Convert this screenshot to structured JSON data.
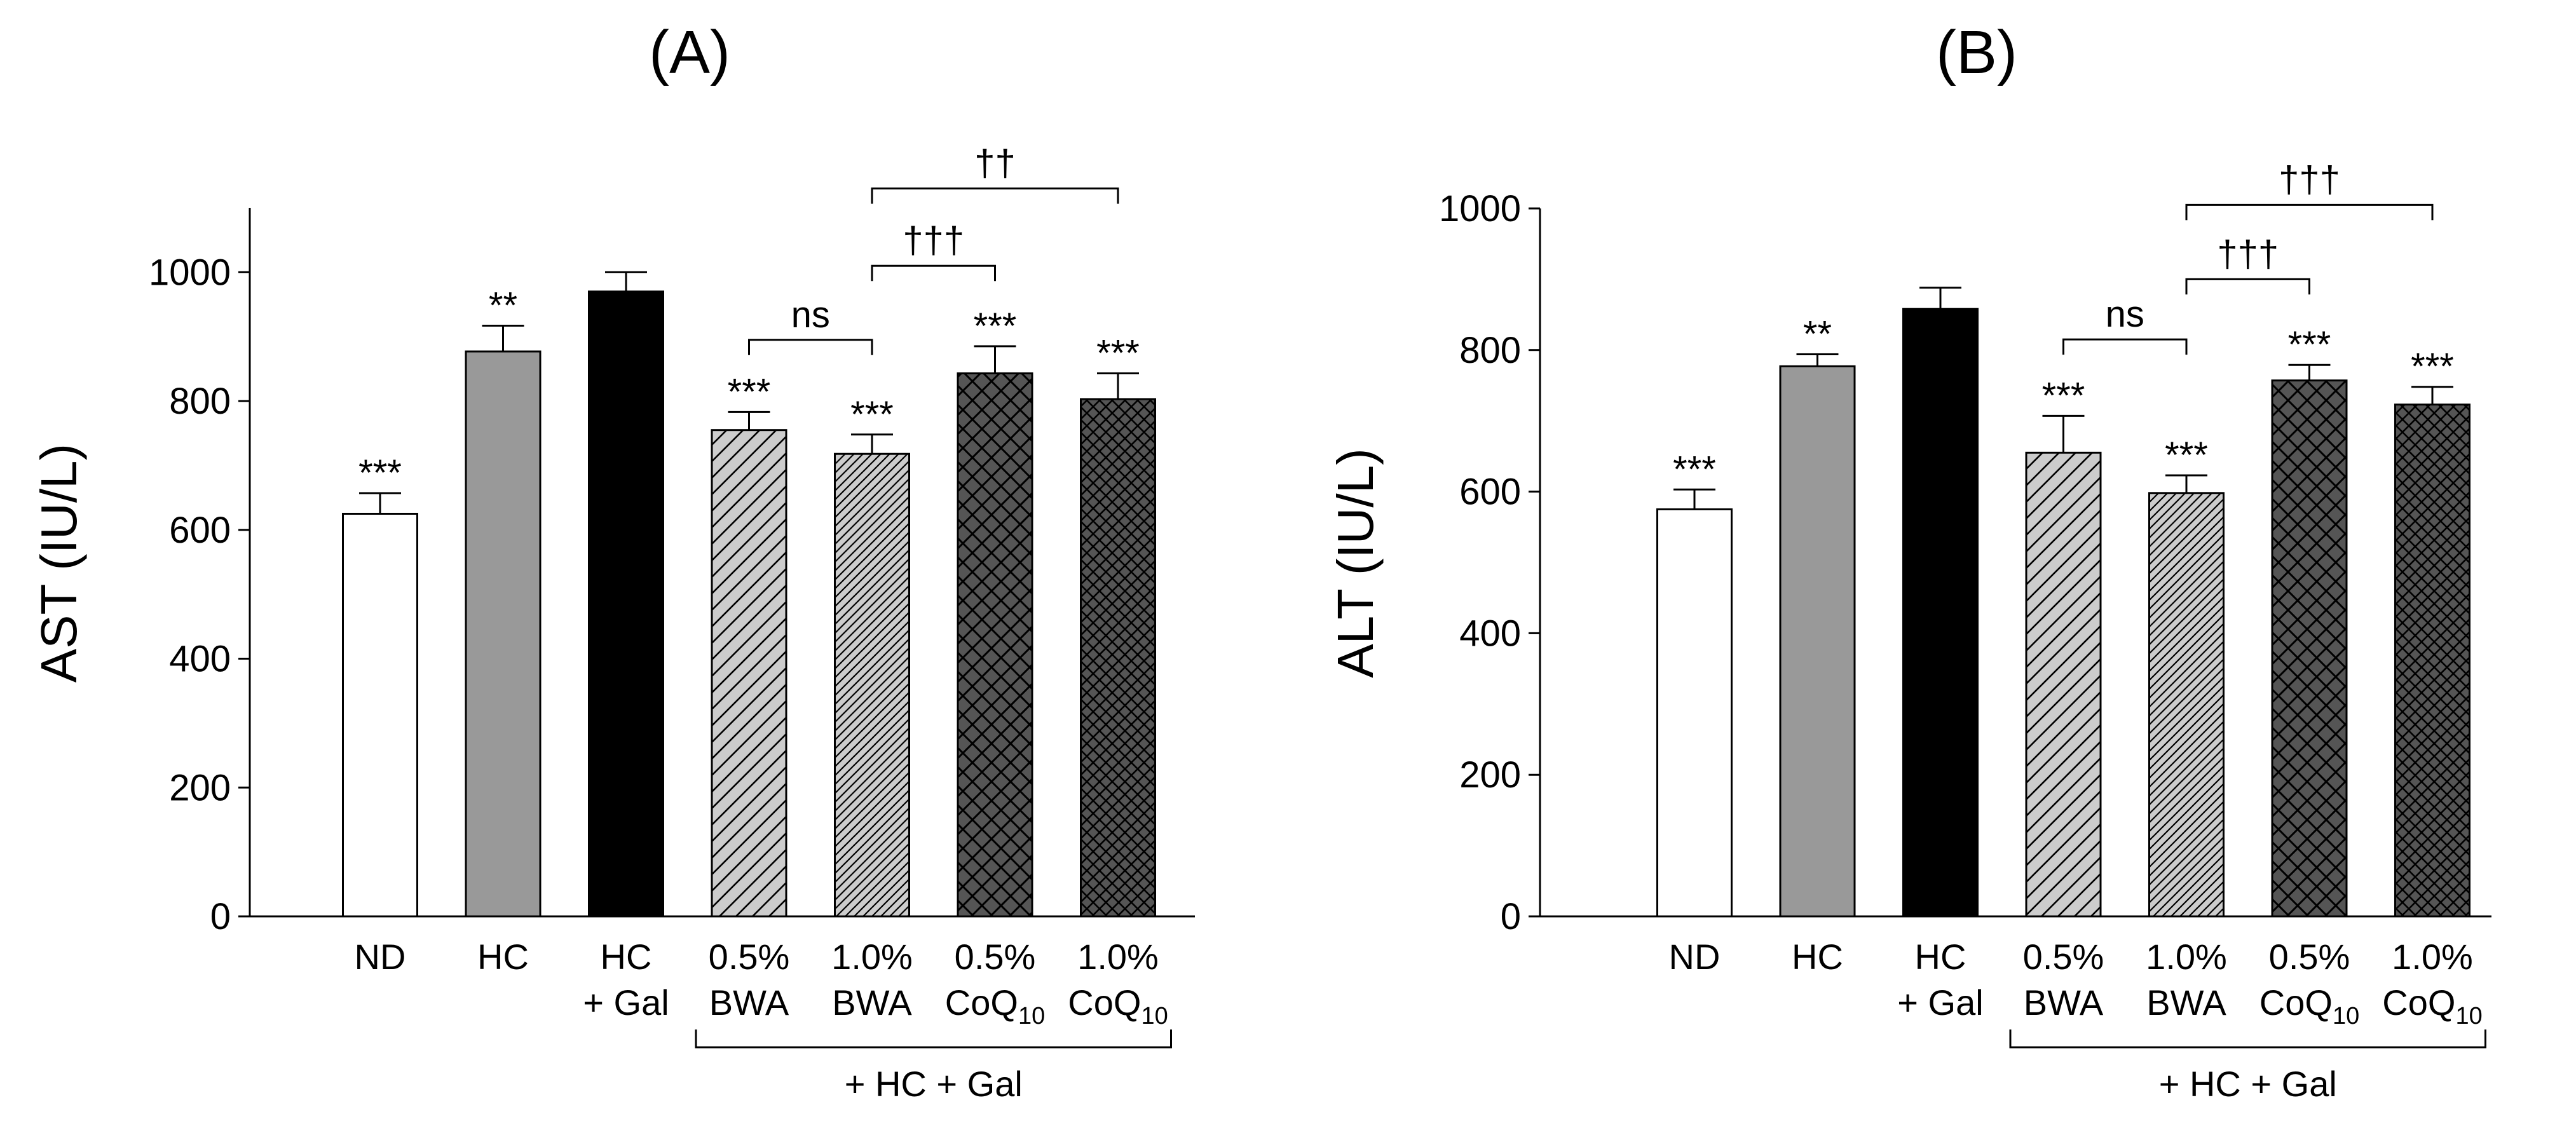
{
  "patterns": {
    "HC + Gal": "none",
    "0.5% BWA": "hatch-wide",
    "1.0% BWA": "hatch-dense",
    "0.5% CoQ10": "cross-wide",
    "1.0% CoQ10": "cross-dense"
  },
  "colors": {
    "bar_stroke": "#000000",
    "nd": "#ffffff",
    "hc": "#999999",
    "hc_gal": "#000000",
    "bwa": "#cccccc",
    "coq": "#555555"
  },
  "chart_data": [
    {
      "type": "bar",
      "panel_label": "(A)",
      "ylabel": "AST (IU/L)",
      "ylim": [
        0,
        1100
      ],
      "yticks": [
        0,
        200,
        400,
        600,
        800,
        1000
      ],
      "categories": [
        {
          "line1": "ND",
          "line2": "",
          "sub": ""
        },
        {
          "line1": "HC",
          "line2": "",
          "sub": ""
        },
        {
          "line1": "HC",
          "line2": "+ Gal",
          "sub": ""
        },
        {
          "line1": "0.5%",
          "line2": "BWA",
          "sub": ""
        },
        {
          "line1": "1.0%",
          "line2": "BWA",
          "sub": ""
        },
        {
          "line1": "0.5%",
          "line2": "CoQ",
          "sub": "10"
        },
        {
          "line1": "1.0%",
          "line2": "CoQ",
          "sub": "10"
        }
      ],
      "values": [
        625,
        877,
        970,
        755,
        718,
        843,
        803
      ],
      "errors": [
        32,
        40,
        30,
        28,
        30,
        42,
        40
      ],
      "sig": [
        "***",
        "**",
        "",
        "***",
        "***",
        "***",
        "***"
      ],
      "brackets": [
        {
          "from": 3,
          "to": 4,
          "label": "ns",
          "level": 895
        },
        {
          "from": 4,
          "to": 5,
          "label": "†††",
          "level": 1010
        },
        {
          "from": 4,
          "to": 6,
          "label": "††",
          "level": 1130
        }
      ],
      "group_label": "+ HC + Gal",
      "group_from": 3,
      "group_to": 6
    },
    {
      "type": "bar",
      "panel_label": "(B)",
      "ylabel": "ALT (IU/L)",
      "ylim": [
        0,
        1000
      ],
      "yticks": [
        0,
        200,
        400,
        600,
        800,
        1000
      ],
      "categories": [
        {
          "line1": "ND",
          "line2": "",
          "sub": ""
        },
        {
          "line1": "HC",
          "line2": "",
          "sub": ""
        },
        {
          "line1": "HC",
          "line2": "+ Gal",
          "sub": ""
        },
        {
          "line1": "0.5%",
          "line2": "BWA",
          "sub": ""
        },
        {
          "line1": "1.0%",
          "line2": "BWA",
          "sub": ""
        },
        {
          "line1": "0.5%",
          "line2": "CoQ",
          "sub": "10"
        },
        {
          "line1": "1.0%",
          "line2": "CoQ",
          "sub": "10"
        }
      ],
      "values": [
        575,
        777,
        858,
        655,
        598,
        757,
        723
      ],
      "errors": [
        28,
        17,
        30,
        52,
        25,
        22,
        25
      ],
      "sig": [
        "***",
        "**",
        "",
        "***",
        "***",
        "***",
        "***"
      ],
      "brackets": [
        {
          "from": 3,
          "to": 4,
          "label": "ns",
          "level": 815
        },
        {
          "from": 4,
          "to": 5,
          "label": "†††",
          "level": 900
        },
        {
          "from": 4,
          "to": 6,
          "label": "†††",
          "level": 1005
        }
      ],
      "group_label": "+ HC + Gal",
      "group_from": 3,
      "group_to": 6
    }
  ]
}
